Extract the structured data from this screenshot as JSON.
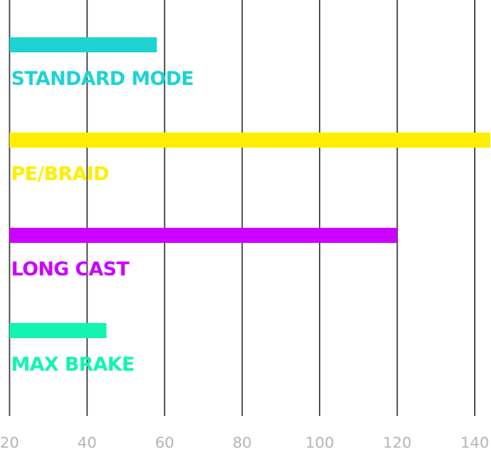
{
  "chart_data": {
    "type": "bar",
    "orientation": "horizontal",
    "categories": [
      "STANDARD MODE",
      "PE/BRAID",
      "LONG CAST",
      "MAX BRAKE"
    ],
    "values": [
      58,
      144,
      120,
      45
    ],
    "colors": [
      "#1fd3d3",
      "#ffee00",
      "#cc00ff",
      "#11f5b0"
    ],
    "xlim": [
      20,
      145
    ],
    "xticks": [
      20,
      40,
      60,
      80,
      100,
      120,
      140
    ],
    "grid": "vertical",
    "title": "",
    "xlabel": "",
    "ylabel": ""
  }
}
